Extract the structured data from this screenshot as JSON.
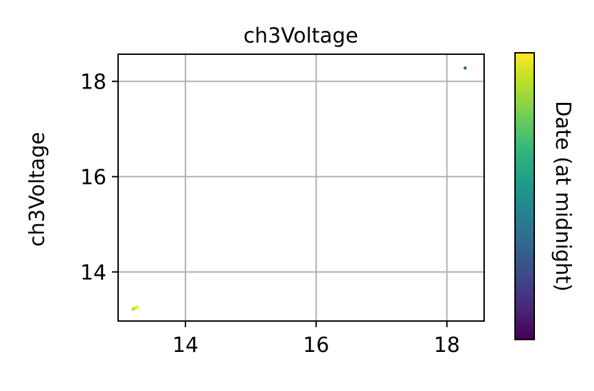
{
  "chart_data": {
    "type": "scatter",
    "title": "ch3Voltage",
    "xlabel": "",
    "ylabel": "ch3Voltage",
    "xlim": [
      12.97,
      18.57
    ],
    "ylim": [
      12.97,
      18.57
    ],
    "x_ticks": [
      14,
      16,
      18
    ],
    "y_ticks": [
      14,
      16,
      18
    ],
    "x_tick_labels": [
      "14",
      "16",
      "18"
    ],
    "y_tick_labels": [
      "14",
      "16",
      "18"
    ],
    "grid": true,
    "colorbar": {
      "label": "Date (at midnight)",
      "colormap": "viridis",
      "colors": [
        "#440154",
        "#482878",
        "#3e4989",
        "#31688e",
        "#26828e",
        "#1f9e89",
        "#35b779",
        "#6ece58",
        "#b5de2b",
        "#fde725"
      ]
    },
    "points": [
      {
        "x": 18.28,
        "y": 18.28,
        "t": 0.33,
        "color": "#31688e"
      },
      {
        "x": 13.2,
        "y": 13.22,
        "t": 0.9,
        "color": "#b5de2b"
      },
      {
        "x": 13.23,
        "y": 13.24,
        "t": 0.95,
        "color": "#dfe318"
      },
      {
        "x": 13.26,
        "y": 13.26,
        "t": 1.0,
        "color": "#fde725"
      }
    ]
  }
}
